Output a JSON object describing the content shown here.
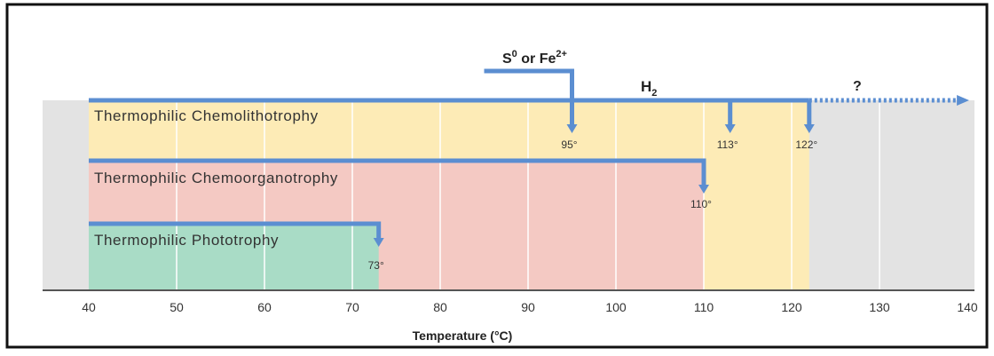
{
  "chart_data": {
    "type": "bar",
    "xlabel": "Temperature (°C)",
    "xlim": [
      35,
      140
    ],
    "xticks": [
      40,
      50,
      60,
      70,
      80,
      90,
      100,
      110,
      120,
      130,
      140
    ],
    "grid": true,
    "categories": [
      "Thermophilic Chemolithotrophy",
      "Thermophilic Chemoorganotrophy",
      "Thermophilic Phototrophy"
    ],
    "bands": [
      {
        "name": "Thermophilic Chemolithotrophy",
        "start": 40,
        "end": 122,
        "color": "#fdebb6"
      },
      {
        "name": "Thermophilic Chemoorganotrophy",
        "start": 40,
        "end": 110,
        "color": "#f4c9c3"
      },
      {
        "name": "Thermophilic Phototrophy",
        "start": 40,
        "end": 73,
        "color": "#a9dcc6"
      }
    ],
    "limits": [
      {
        "category": "Thermophilic Chemolithotrophy",
        "value": 95,
        "label": "95°",
        "substrate": "S0 or Fe2+"
      },
      {
        "category": "Thermophilic Chemolithotrophy",
        "value": 113,
        "label": "113°",
        "substrate": "H2"
      },
      {
        "category": "Thermophilic Chemolithotrophy",
        "value": 122,
        "label": "122°",
        "substrate": "H2"
      },
      {
        "category": "Thermophilic Chemoorganotrophy",
        "value": 110,
        "label": "110°"
      },
      {
        "category": "Thermophilic Phototrophy",
        "value": 73,
        "label": "73°"
      }
    ],
    "annotations": {
      "s_label": {
        "base": "S",
        "sup": "0",
        "mid": " or Fe",
        "sup2": "2+"
      },
      "h2_label": {
        "base": "H",
        "sub": "2"
      },
      "question": "?"
    },
    "colors": {
      "arrow": "#5b8ed1",
      "background": "#e3e3e3",
      "grid": "#ffffff",
      "axis": "#555555"
    }
  }
}
